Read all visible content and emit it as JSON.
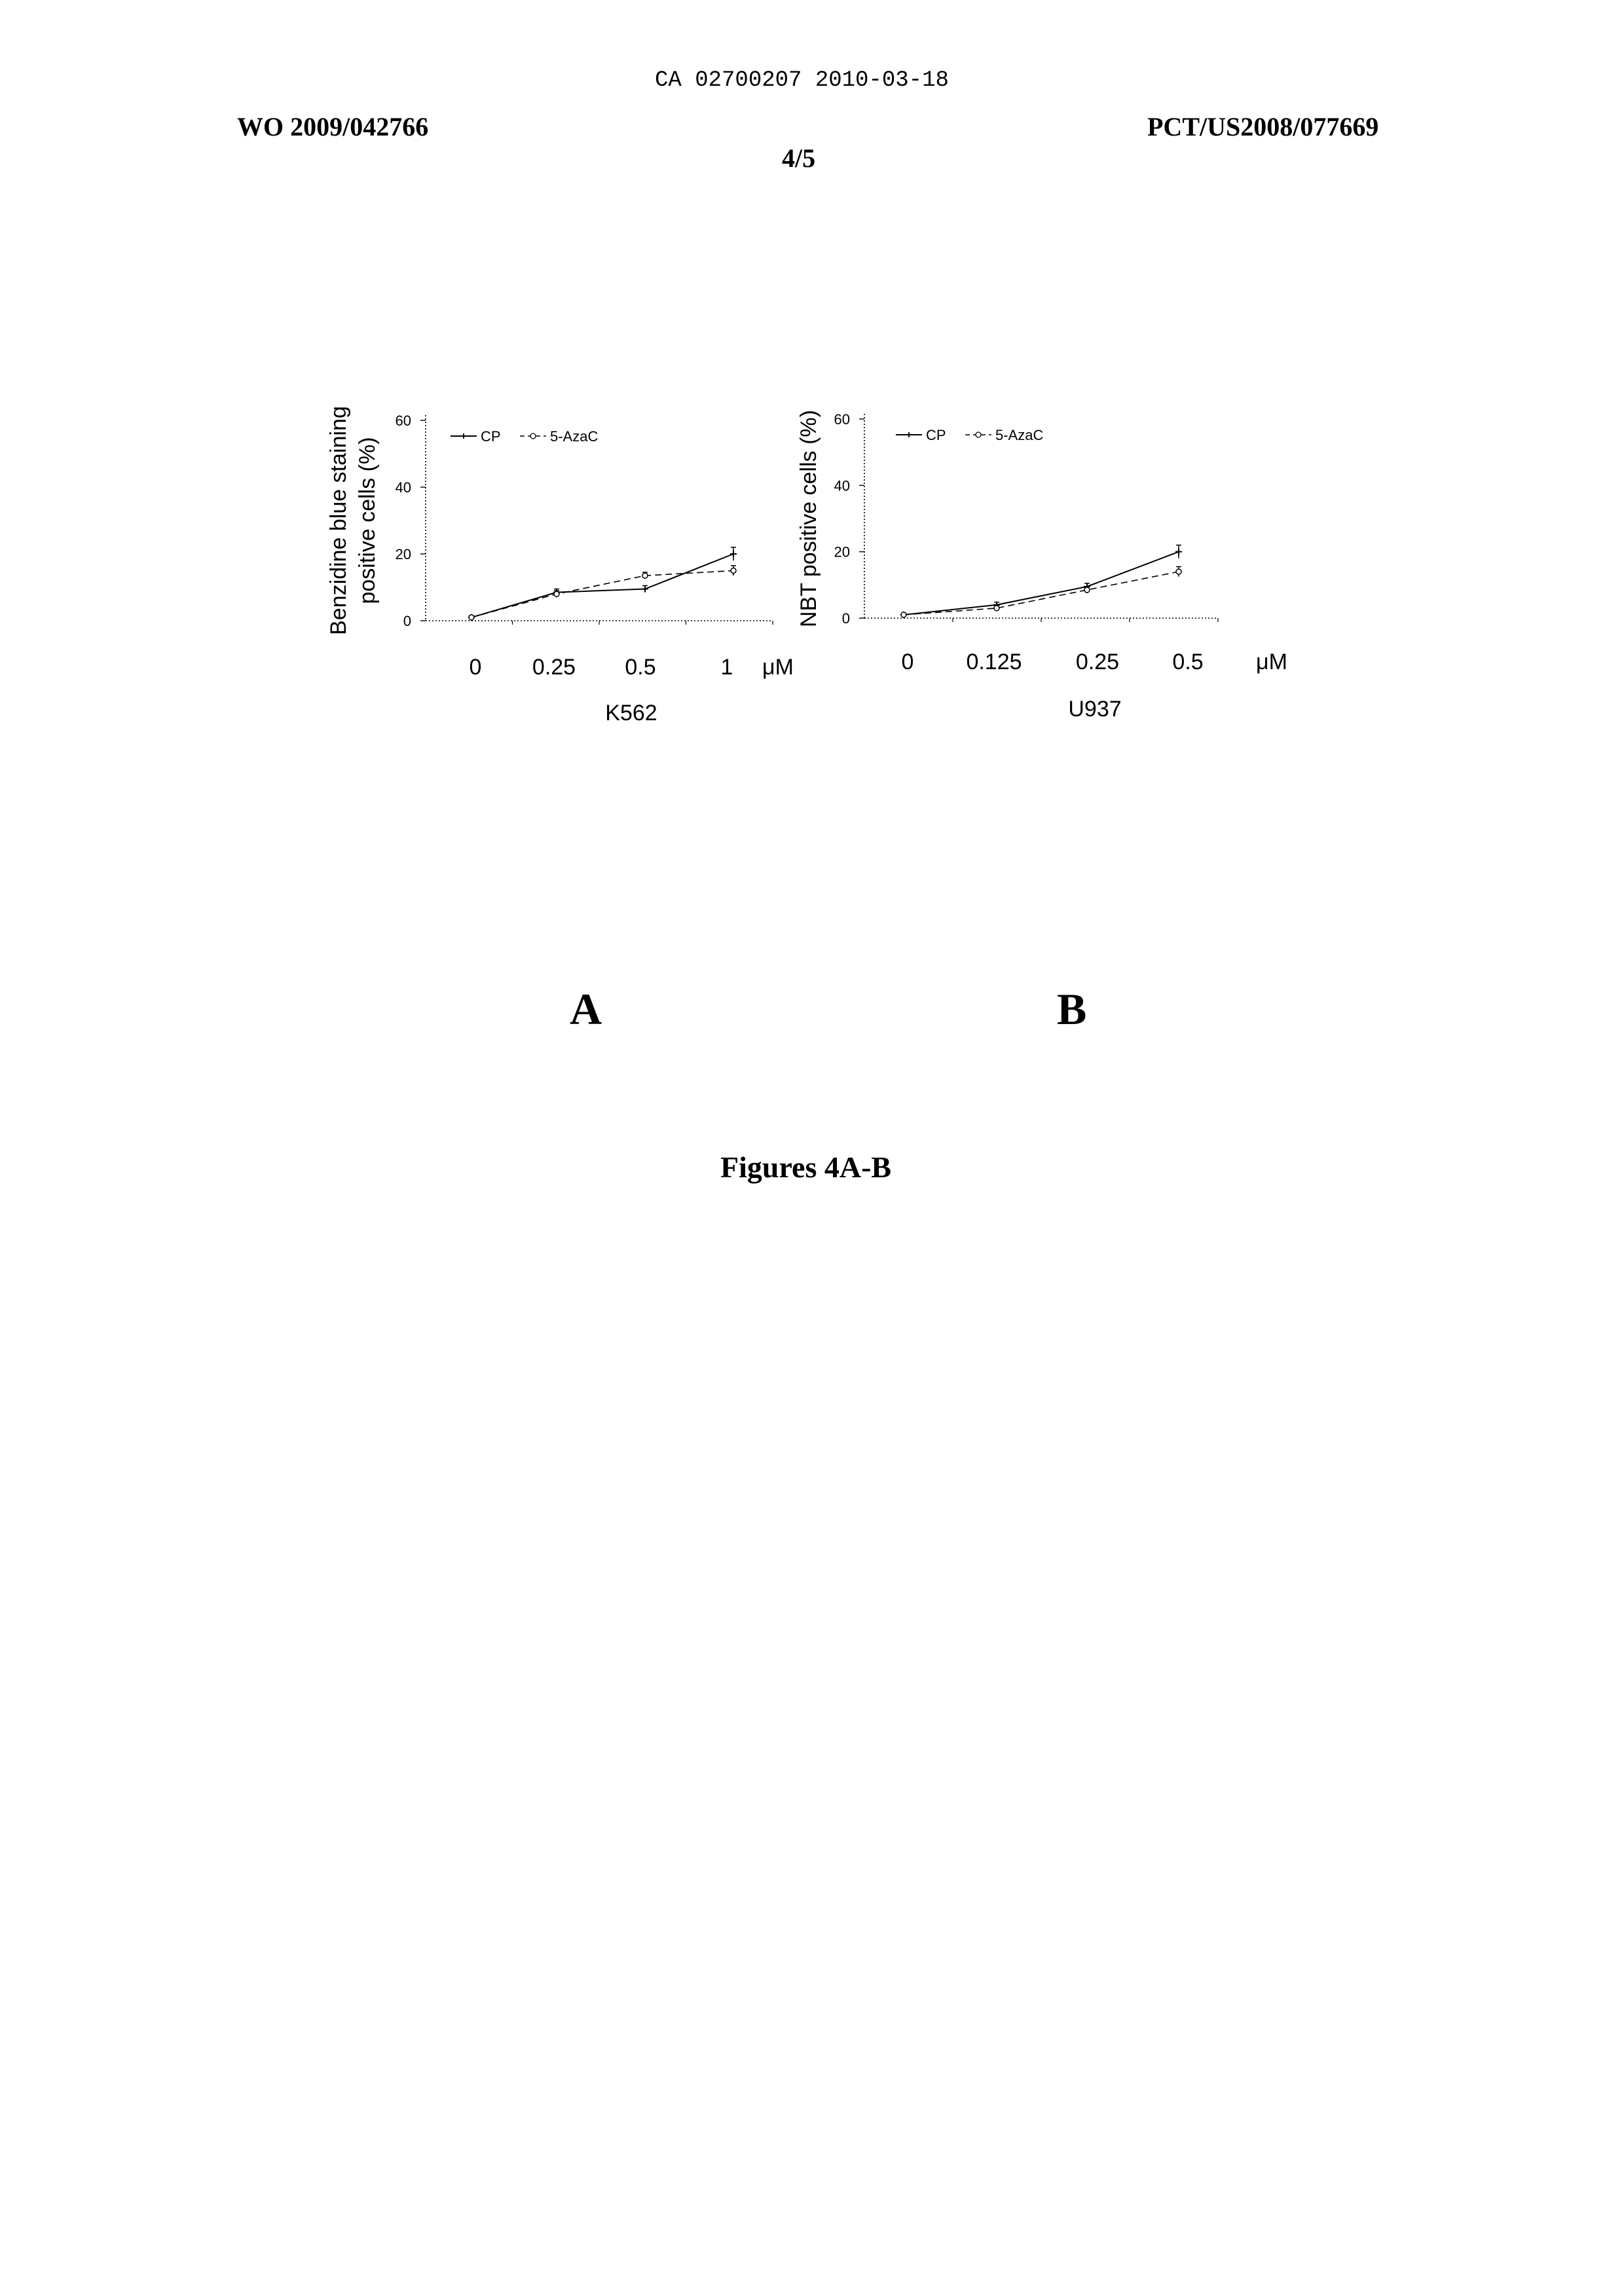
{
  "header": {
    "doc_id": "CA 02700207 2010-03-18",
    "pub_number": "WO 2009/042766",
    "app_number": "PCT/US2008/077669",
    "sheet": "4/5"
  },
  "panels": {
    "a_label": "A",
    "b_label": "B"
  },
  "figure_caption": "Figures 4A-B",
  "chart_data": [
    {
      "type": "line",
      "panel": "A",
      "ylabel": "Benzidine blue staining positive cells (%)",
      "ylabel_lines": [
        "Benzidine blue staining",
        "positive cells (%)"
      ],
      "cell_line": "K562",
      "unit": "μM",
      "categories": [
        "0",
        "0.25",
        "0.5",
        "1"
      ],
      "yticks": [
        "0",
        "20",
        "40",
        "60"
      ],
      "ylim": [
        0,
        60
      ],
      "legend": "top-left",
      "series": [
        {
          "name": "CP",
          "values": [
            1,
            8.5,
            9.5,
            20
          ],
          "errors": [
            0.5,
            1,
            1,
            2
          ],
          "style": "solid",
          "marker": "+"
        },
        {
          "name": "5-AzaC",
          "values": [
            1,
            8,
            13.5,
            15
          ],
          "errors": [
            0.5,
            1,
            1,
            1.5
          ],
          "style": "dash",
          "marker": "o"
        }
      ]
    },
    {
      "type": "line",
      "panel": "B",
      "ylabel": "NBT positive cells (%)",
      "ylabel_lines": [
        "NBT positive cells (%)"
      ],
      "cell_line": "U937",
      "unit": "μM",
      "categories": [
        "0",
        "0.125",
        "0.25",
        "0.5"
      ],
      "yticks": [
        "0",
        "20",
        "40",
        "60"
      ],
      "ylim": [
        0,
        60
      ],
      "legend": "top-left",
      "series": [
        {
          "name": "CP",
          "values": [
            1,
            4,
            9.5,
            20
          ],
          "errors": [
            0.5,
            0.8,
            1,
            2
          ],
          "style": "solid",
          "marker": "+"
        },
        {
          "name": "5-AzaC",
          "values": [
            1,
            3,
            8.5,
            14
          ],
          "errors": [
            0.5,
            0.8,
            1,
            1.5
          ],
          "style": "dash",
          "marker": "o"
        }
      ]
    }
  ]
}
